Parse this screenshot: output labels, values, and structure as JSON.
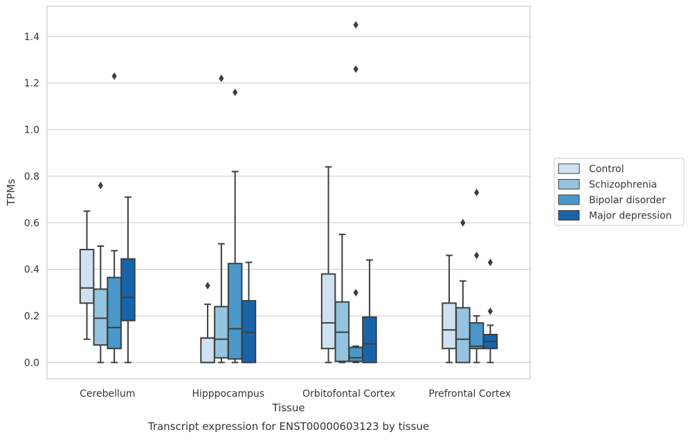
{
  "chart_data": {
    "type": "box",
    "title": "",
    "caption": "Transcript expression for ENST00000603123 by tissue",
    "xlabel": "Tissue",
    "ylabel": "TPMs",
    "ylim": [
      -0.07,
      1.53
    ],
    "yticks": [
      "0.0",
      "0.2",
      "0.4",
      "0.6",
      "0.8",
      "1.0",
      "1.2",
      "1.4"
    ],
    "ytick_values": [
      0.0,
      0.2,
      0.4,
      0.6,
      0.8,
      1.0,
      1.2,
      1.4
    ],
    "grid": true,
    "legend_position": "right",
    "categories": [
      "Cerebellum",
      "Hipppocampus",
      "Orbitofontal Cortex",
      "Prefrontal Cortex"
    ],
    "series": [
      {
        "name": "Control",
        "color": "#d0e1f2",
        "boxes": [
          {
            "whislo": 0.1,
            "q1": 0.255,
            "med": 0.32,
            "q3": 0.485,
            "whishi": 0.65,
            "fliers": []
          },
          {
            "whislo": 0.0,
            "q1": 0.0,
            "med": 0.0,
            "q3": 0.105,
            "whishi": 0.25,
            "fliers": [
              0.33
            ]
          },
          {
            "whislo": 0.0,
            "q1": 0.06,
            "med": 0.17,
            "q3": 0.38,
            "whishi": 0.84,
            "fliers": []
          },
          {
            "whislo": 0.0,
            "q1": 0.06,
            "med": 0.14,
            "q3": 0.255,
            "whishi": 0.46,
            "fliers": []
          }
        ]
      },
      {
        "name": "Schizophrenia",
        "color": "#94c4df",
        "boxes": [
          {
            "whislo": 0.0,
            "q1": 0.075,
            "med": 0.19,
            "q3": 0.315,
            "whishi": 0.5,
            "fliers": [
              0.76
            ]
          },
          {
            "whislo": 0.0,
            "q1": 0.02,
            "med": 0.1,
            "q3": 0.24,
            "whishi": 0.51,
            "fliers": [
              1.22
            ]
          },
          {
            "whislo": 0.0,
            "q1": 0.005,
            "med": 0.13,
            "q3": 0.26,
            "whishi": 0.55,
            "fliers": []
          },
          {
            "whislo": 0.0,
            "q1": 0.0,
            "med": 0.1,
            "q3": 0.235,
            "whishi": 0.35,
            "fliers": [
              0.6
            ]
          }
        ]
      },
      {
        "name": "Bipolar disorder",
        "color": "#4a98c9",
        "boxes": [
          {
            "whislo": 0.0,
            "q1": 0.06,
            "med": 0.15,
            "q3": 0.365,
            "whishi": 0.48,
            "fliers": [
              1.23
            ]
          },
          {
            "whislo": 0.0,
            "q1": 0.015,
            "med": 0.145,
            "q3": 0.425,
            "whishi": 0.82,
            "fliers": [
              1.16
            ]
          },
          {
            "whislo": 0.0,
            "q1": 0.005,
            "med": 0.02,
            "q3": 0.065,
            "whishi": 0.07,
            "fliers": [
              0.3,
              1.26,
              1.45
            ]
          },
          {
            "whislo": 0.0,
            "q1": 0.06,
            "med": 0.07,
            "q3": 0.17,
            "whishi": 0.2,
            "fliers": [
              0.46,
              0.73
            ]
          }
        ]
      },
      {
        "name": "Major depression",
        "color": "#1764ab",
        "boxes": [
          {
            "whislo": 0.0,
            "q1": 0.18,
            "med": 0.28,
            "q3": 0.445,
            "whishi": 0.71,
            "fliers": []
          },
          {
            "whislo": 0.0,
            "q1": 0.0,
            "med": 0.13,
            "q3": 0.265,
            "whishi": 0.43,
            "fliers": []
          },
          {
            "whislo": 0.0,
            "q1": 0.0,
            "med": 0.08,
            "q3": 0.195,
            "whishi": 0.44,
            "fliers": []
          },
          {
            "whislo": 0.0,
            "q1": 0.06,
            "med": 0.09,
            "q3": 0.12,
            "whishi": 0.16,
            "fliers": [
              0.22,
              0.43
            ]
          }
        ]
      }
    ]
  }
}
